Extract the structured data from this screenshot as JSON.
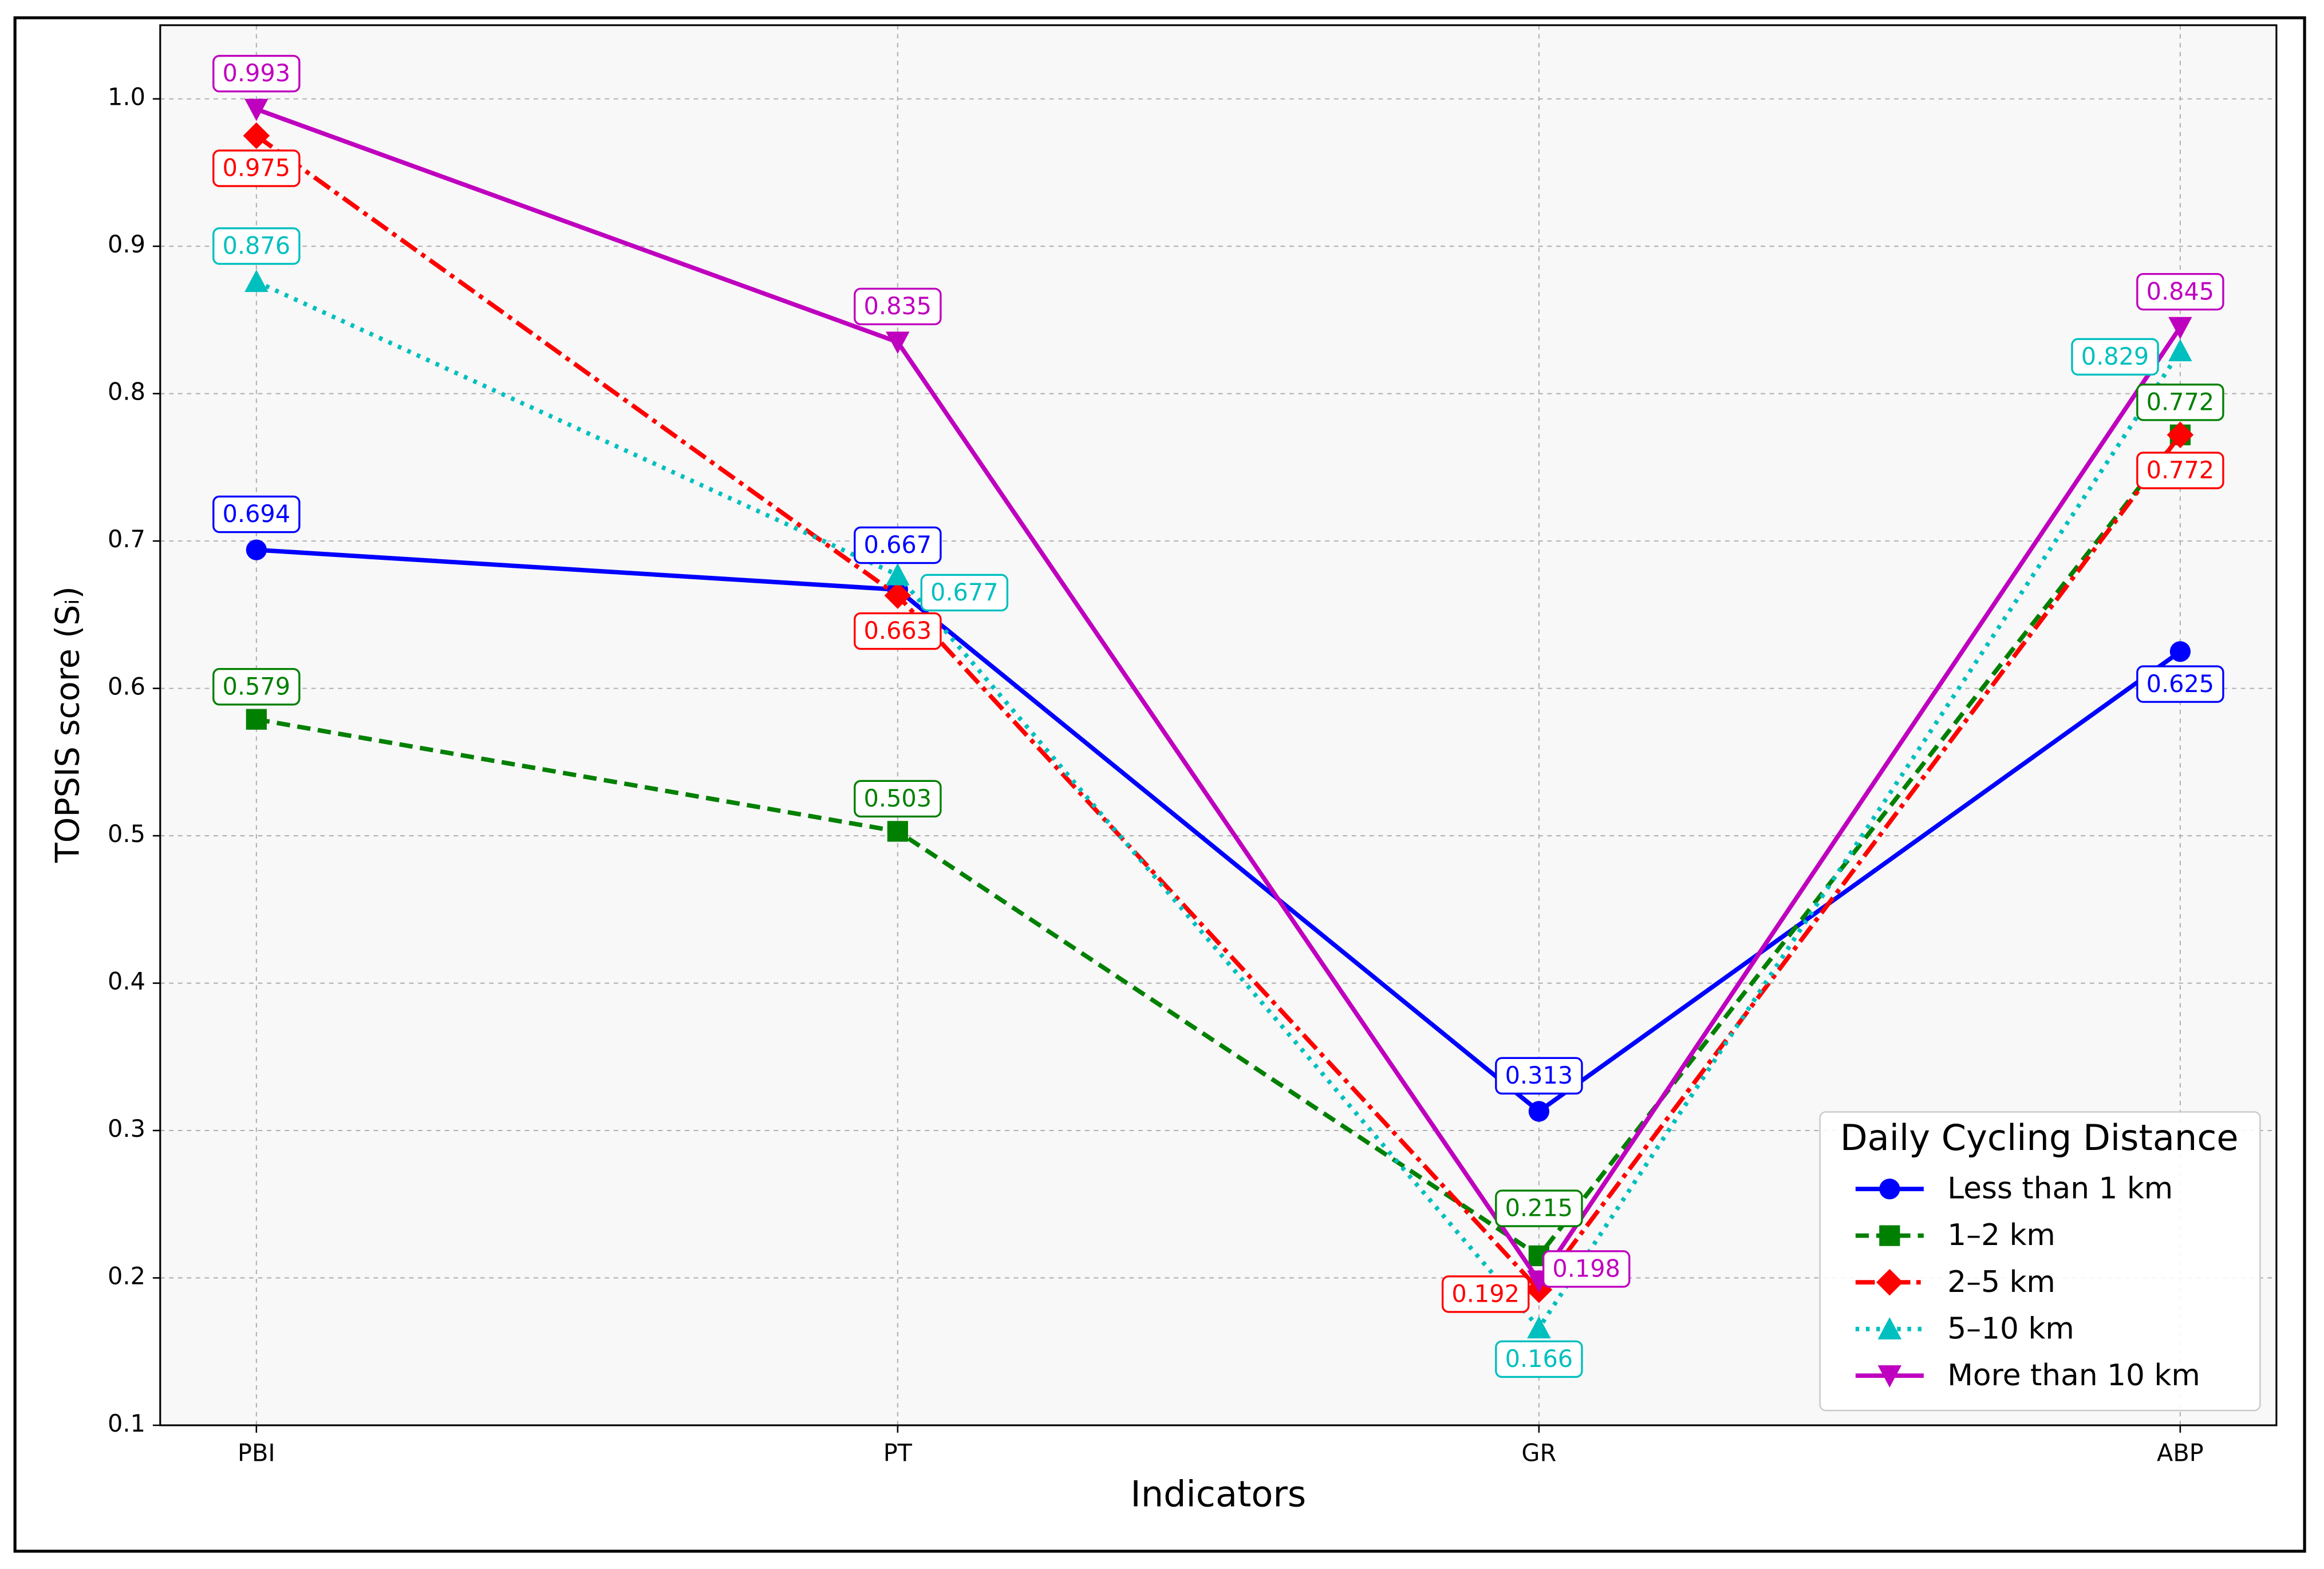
{
  "chart_data": {
    "type": "line",
    "x_label": "Indicators",
    "y_label": "TOPSIS score (Sᵢ)",
    "categories": [
      "PBI",
      "PT",
      "GR",
      "ABP"
    ],
    "series": [
      {
        "name": "Less than 1 km",
        "color": "#0000ff",
        "marker": "circle",
        "dash": "solid",
        "values": [
          0.694,
          0.667,
          0.313,
          0.625
        ]
      },
      {
        "name": "1–2 km",
        "color": "#008000",
        "marker": "square",
        "dash": "dashed",
        "values": [
          0.579,
          0.503,
          0.215,
          0.772
        ]
      },
      {
        "name": "2–5 km",
        "color": "#ff0000",
        "marker": "diamond",
        "dash": "dashdot",
        "values": [
          0.975,
          0.663,
          0.192,
          0.772
        ]
      },
      {
        "name": "5–10 km",
        "color": "#00bfbf",
        "marker": "triangle-up",
        "dash": "dotted",
        "values": [
          0.876,
          0.677,
          0.166,
          0.829
        ]
      },
      {
        "name": "More than 10 km",
        "color": "#bf00bf",
        "marker": "triangle-down",
        "dash": "solid",
        "values": [
          0.993,
          0.835,
          0.198,
          0.845
        ]
      }
    ],
    "ylim": [
      0.1,
      1.05
    ],
    "yticks": [
      0.1,
      0.2,
      0.3,
      0.4,
      0.5,
      0.6,
      0.7,
      0.8,
      0.9,
      {
        "value": 1,
        "label": "1.0"
      }
    ],
    "grid": true,
    "legend_title": "Daily Cycling Distance",
    "legend_position": "lower right"
  }
}
